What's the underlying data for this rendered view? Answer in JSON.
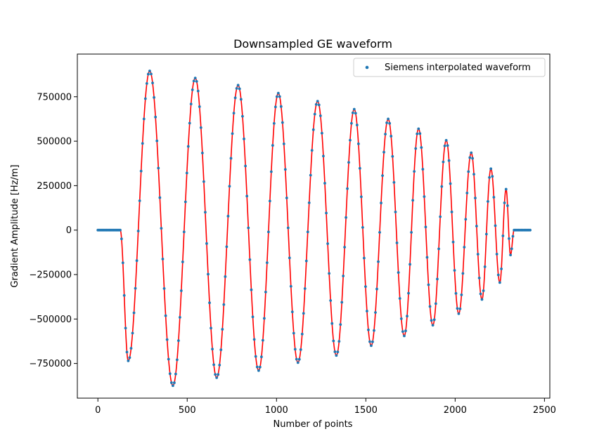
{
  "chart_data": {
    "type": "line",
    "title": "Downsampled GE waveform",
    "xlabel": "Number of points",
    "ylabel": "Gradient Amplitude [Hz/m]",
    "xlim": [
      -115,
      2530
    ],
    "ylim": [
      -945000,
      990000
    ],
    "xticks": [
      0,
      500,
      1000,
      1500,
      2000,
      2500
    ],
    "yticks": [
      -750000,
      -500000,
      -250000,
      0,
      250000,
      500000,
      750000
    ],
    "xtick_labels": [
      "0",
      "500",
      "1000",
      "1500",
      "2000",
      "2500"
    ],
    "ytick_labels": [
      "−750000",
      "−500000",
      "−250000",
      "0",
      "250000",
      "500000",
      "750000"
    ],
    "grid": false,
    "legend": {
      "placement": "upper right",
      "entries": [
        "Siemens interpolated waveform"
      ]
    },
    "series": [
      {
        "name": "",
        "kind": "line",
        "color": "#ff0000",
        "x": [
          0,
          125,
          170,
          290,
          420,
          545,
          665,
          785,
          900,
          1010,
          1120,
          1230,
          1335,
          1435,
          1530,
          1625,
          1715,
          1795,
          1875,
          1950,
          2020,
          2090,
          2150,
          2200,
          2250,
          2285,
          2310,
          2330,
          2420
        ],
        "y": [
          0,
          0,
          -735000,
          895000,
          -875000,
          855000,
          -830000,
          815000,
          -790000,
          770000,
          -745000,
          725000,
          -705000,
          680000,
          -650000,
          625000,
          -595000,
          570000,
          -535000,
          505000,
          -470000,
          435000,
          -390000,
          345000,
          -295000,
          230000,
          -140000,
          0,
          0
        ]
      },
      {
        "name": "Siemens interpolated waveform",
        "kind": "scatter",
        "color": "#1f77b4",
        "x": [
          0,
          125,
          170,
          290,
          420,
          545,
          665,
          785,
          900,
          1010,
          1120,
          1230,
          1335,
          1435,
          1530,
          1625,
          1715,
          1795,
          1875,
          1950,
          2020,
          2090,
          2150,
          2200,
          2250,
          2285,
          2310,
          2330,
          2420
        ],
        "y": [
          0,
          0,
          -735000,
          895000,
          -875000,
          855000,
          -830000,
          815000,
          -790000,
          770000,
          -745000,
          725000,
          -705000,
          680000,
          -650000,
          625000,
          -595000,
          570000,
          -535000,
          505000,
          -470000,
          435000,
          -390000,
          345000,
          -295000,
          230000,
          -140000,
          0,
          0
        ]
      }
    ]
  }
}
